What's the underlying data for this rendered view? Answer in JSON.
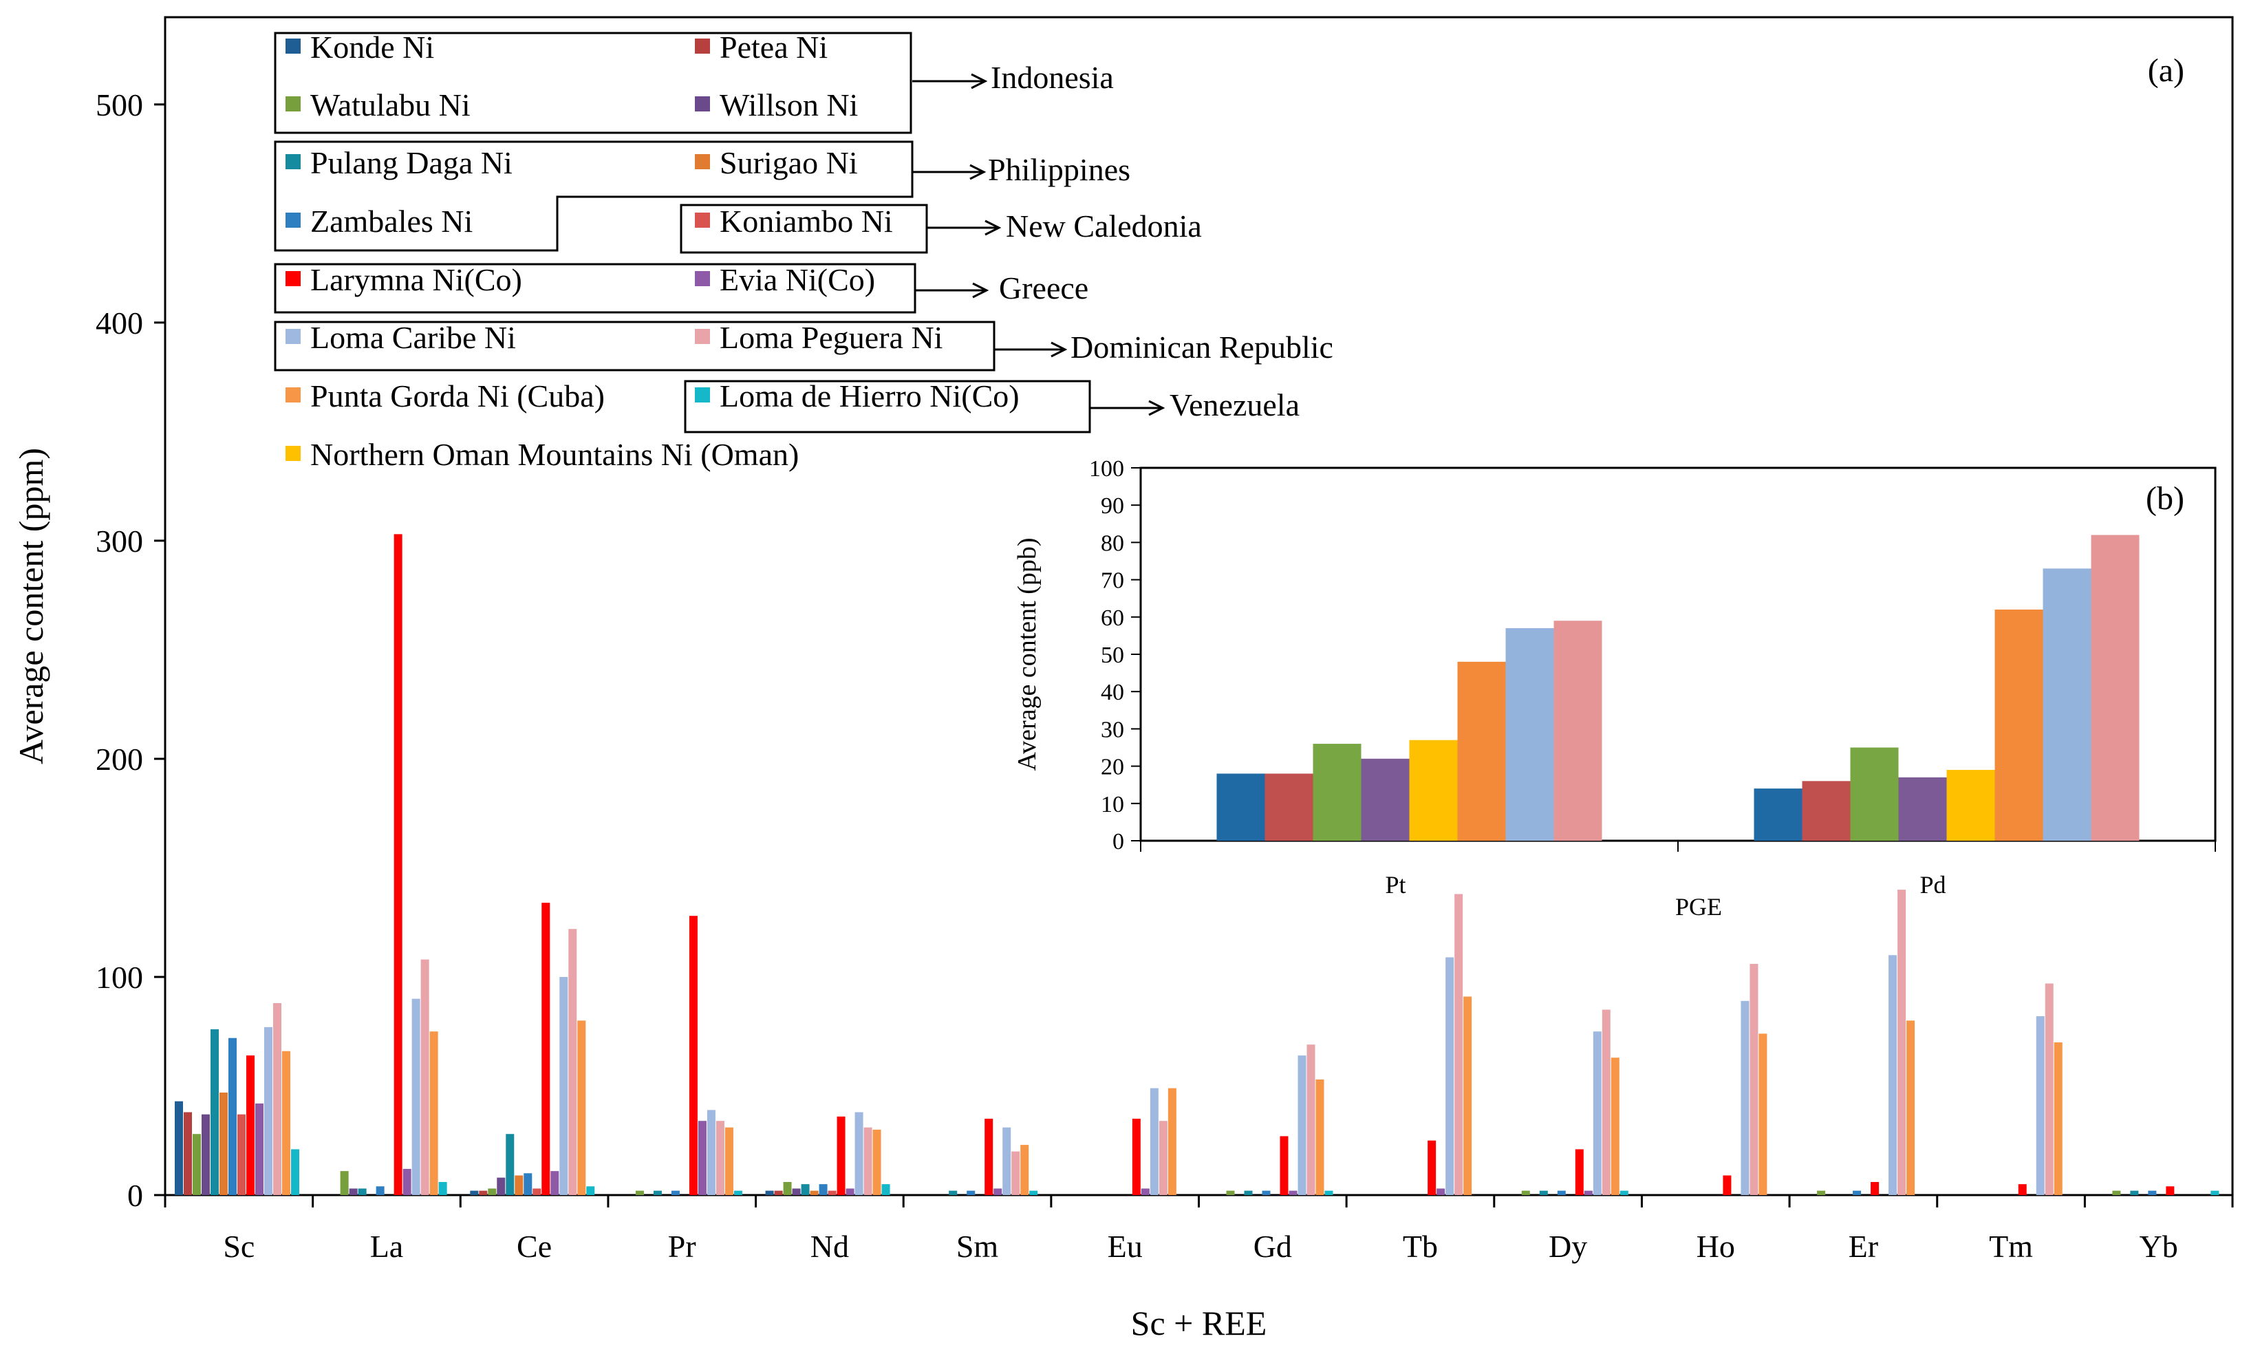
{
  "chart_data": [
    {
      "panel": "(a)",
      "type": "bar",
      "xlabel": "Sc + REE",
      "ylabel": "Average content (ppm)",
      "ylim": [
        0,
        540
      ],
      "yticks": [
        0,
        100,
        200,
        300,
        400,
        500
      ],
      "categories": [
        "Sc",
        "La",
        "Ce",
        "Pr",
        "Nd",
        "Sm",
        "Eu",
        "Gd",
        "Tb",
        "Dy",
        "Ho",
        "Er",
        "Tm",
        "Yb"
      ],
      "series": [
        {
          "name": "Konde Ni",
          "color": "#1f5e95",
          "values": [
            43,
            0,
            2,
            0,
            2,
            0,
            0,
            0,
            0,
            0,
            0,
            0,
            0,
            0
          ]
        },
        {
          "name": "Petea Ni",
          "color": "#b6403d",
          "values": [
            38,
            0,
            2,
            0,
            2,
            0,
            0,
            0,
            0,
            0,
            0,
            0,
            0,
            0
          ]
        },
        {
          "name": "Watulabu Ni",
          "color": "#77a03c",
          "values": [
            28,
            11,
            3,
            2,
            6,
            0,
            0,
            2,
            0,
            2,
            0,
            2,
            0,
            2
          ]
        },
        {
          "name": "Willson Ni",
          "color": "#6b4a8c",
          "values": [
            37,
            3,
            8,
            0,
            3,
            0,
            0,
            0,
            0,
            0,
            0,
            0,
            0,
            0
          ]
        },
        {
          "name": "Pulang Daga Ni",
          "color": "#148b9e",
          "values": [
            76,
            3,
            28,
            2,
            5,
            2,
            0,
            2,
            0,
            2,
            0,
            0,
            0,
            2
          ]
        },
        {
          "name": "Surigao Ni",
          "color": "#e07b30",
          "values": [
            47,
            0,
            9,
            0,
            2,
            0,
            0,
            0,
            0,
            0,
            0,
            0,
            0,
            0
          ]
        },
        {
          "name": "Zambales Ni",
          "color": "#2d7fc1",
          "values": [
            72,
            4,
            10,
            2,
            5,
            2,
            0,
            2,
            0,
            2,
            0,
            2,
            0,
            2
          ]
        },
        {
          "name": "Koniambo Ni",
          "color": "#d9534f",
          "values": [
            37,
            0,
            3,
            0,
            2,
            0,
            0,
            0,
            0,
            0,
            0,
            0,
            0,
            0
          ]
        },
        {
          "name": "Larymna Ni(Co)",
          "color": "#ff0000",
          "values": [
            64,
            303,
            134,
            128,
            36,
            35,
            35,
            27,
            25,
            21,
            9,
            6,
            5,
            4
          ]
        },
        {
          "name": "Evia Ni(Co)",
          "color": "#8e5aa8",
          "values": [
            42,
            12,
            11,
            34,
            3,
            3,
            3,
            2,
            3,
            2,
            0,
            0,
            0,
            0
          ]
        },
        {
          "name": "Loma Caribe Ni",
          "color": "#9fb8df",
          "values": [
            77,
            90,
            100,
            39,
            38,
            31,
            49,
            64,
            109,
            75,
            89,
            110,
            82,
            0
          ]
        },
        {
          "name": "Loma Peguera Ni",
          "color": "#e8a4a8",
          "values": [
            88,
            108,
            122,
            34,
            31,
            20,
            34,
            69,
            138,
            85,
            106,
            140,
            97,
            0
          ]
        },
        {
          "name": "Punta Gorda Ni (Cuba)",
          "color": "#f79646",
          "values": [
            66,
            75,
            80,
            31,
            30,
            23,
            49,
            53,
            91,
            63,
            74,
            80,
            70,
            0
          ]
        },
        {
          "name": "Loma de Hierro Ni(Co)",
          "color": "#15b8c8",
          "values": [
            21,
            6,
            4,
            2,
            5,
            2,
            0,
            2,
            0,
            2,
            0,
            0,
            0,
            2
          ]
        },
        {
          "name": "Northern Oman Mountains Ni (Oman)",
          "color": "#ffc000",
          "values": [
            0,
            0,
            0,
            0,
            0,
            0,
            0,
            0,
            0,
            0,
            0,
            0,
            0,
            0
          ]
        }
      ],
      "legend_groups": [
        {
          "label": "Indonesia",
          "members": [
            "Konde Ni",
            "Petea Ni",
            "Watulabu Ni",
            "Willson Ni"
          ]
        },
        {
          "label": "Philippines",
          "members": [
            "Pulang Daga Ni",
            "Surigao Ni",
            "Zambales Ni"
          ]
        },
        {
          "label": "New Caledonia",
          "members": [
            "Koniambo Ni"
          ]
        },
        {
          "label": "Greece",
          "members": [
            "Larymna Ni(Co)",
            "Evia Ni(Co)"
          ]
        },
        {
          "label": "Dominican Republic",
          "members": [
            "Loma Caribe Ni",
            "Loma Peguera Ni"
          ]
        },
        {
          "label": "Venezuela",
          "members": [
            "Loma de Hierro Ni(Co)"
          ]
        }
      ],
      "legend_placement": "top-left",
      "grid": false
    },
    {
      "panel": "(b)",
      "type": "bar",
      "xlabel": "PGE",
      "ylabel": "Average content (ppb)",
      "ylim": [
        0,
        100
      ],
      "yticks": [
        0,
        10,
        20,
        30,
        40,
        50,
        60,
        70,
        80,
        90,
        100
      ],
      "categories": [
        "Pt",
        "Pd"
      ],
      "series": [
        {
          "color": "#1f6aa5",
          "values": [
            18,
            14
          ]
        },
        {
          "color": "#c0504d",
          "values": [
            18,
            16
          ]
        },
        {
          "color": "#77a643",
          "values": [
            26,
            25
          ]
        },
        {
          "color": "#7b5a96",
          "values": [
            22,
            17
          ]
        },
        {
          "color": "#ffc000",
          "values": [
            27,
            19
          ]
        },
        {
          "color": "#f28a3a",
          "values": [
            48,
            62
          ]
        },
        {
          "color": "#93b3dc",
          "values": [
            57,
            73
          ]
        },
        {
          "color": "#e59596",
          "values": [
            59,
            82
          ]
        }
      ],
      "grid": false
    }
  ]
}
